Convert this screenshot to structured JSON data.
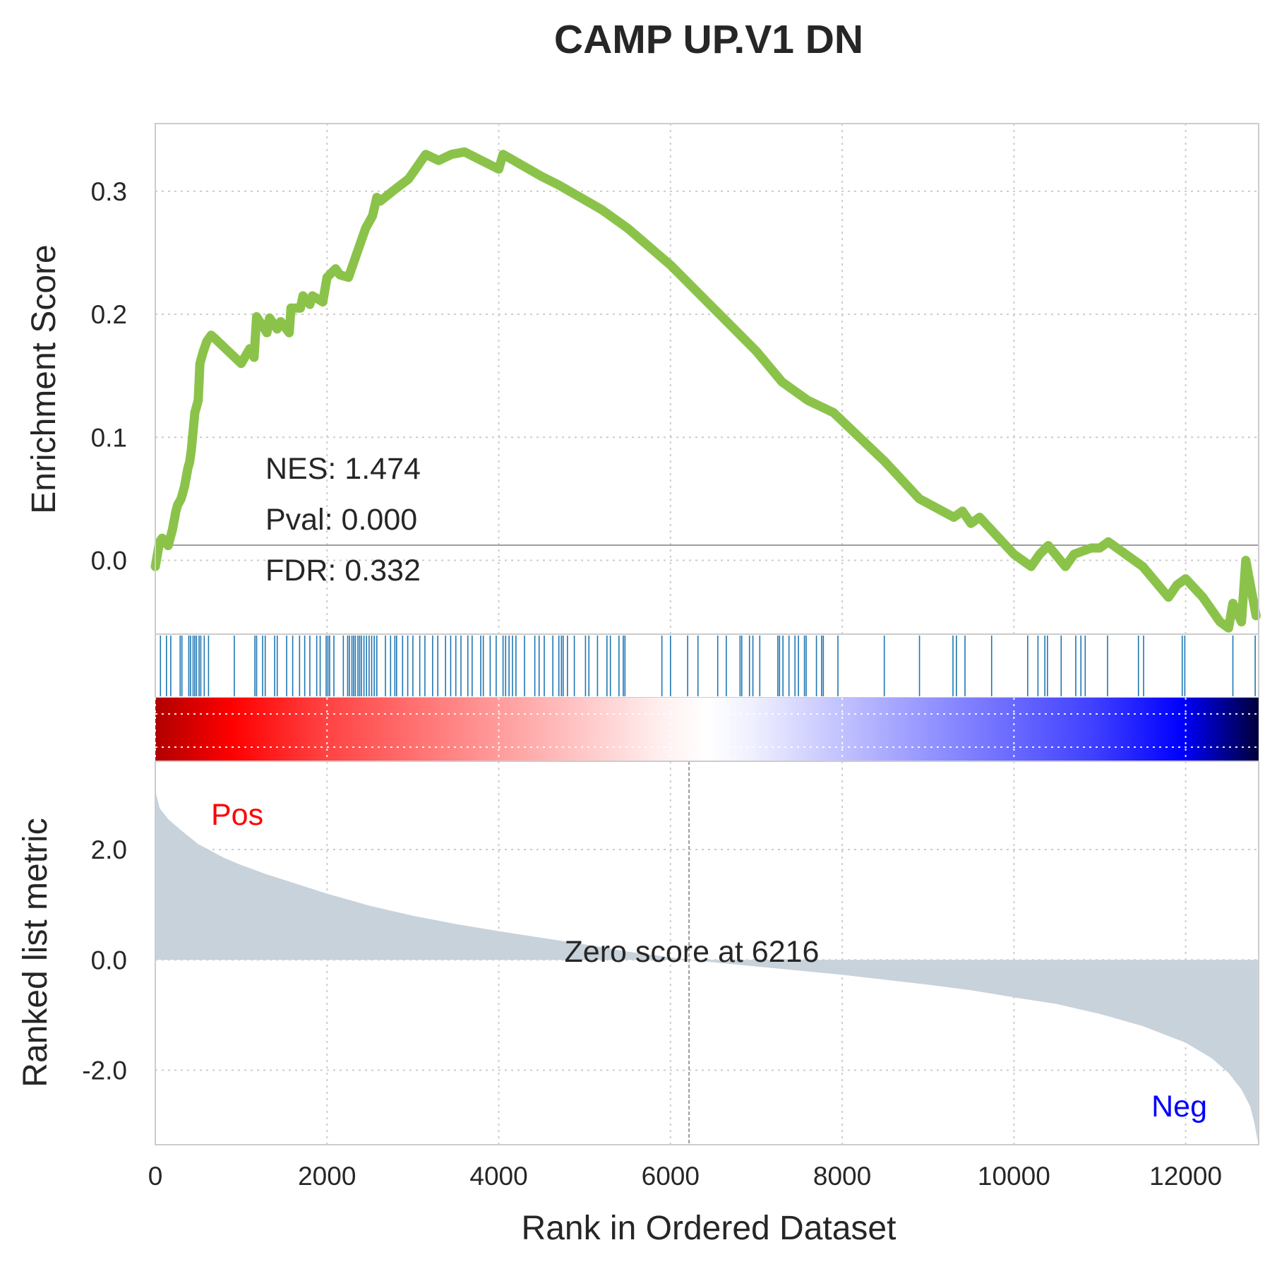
{
  "chart_data": {
    "type": "line",
    "title": "CAMP UP.V1 DN",
    "xlabel": "Rank in Ordered Dataset",
    "x_ticks": [
      "0",
      "2000",
      "4000",
      "6000",
      "8000",
      "10000",
      "12000"
    ],
    "xlim": [
      0,
      12850
    ],
    "panels": {
      "enrichment": {
        "ylabel": "Enrichment Score",
        "y_ticks": [
          "0.0",
          "0.1",
          "0.2",
          "0.3"
        ],
        "ylim": [
          -0.06,
          0.355
        ],
        "line_color": "#8bc34a",
        "stats": {
          "nes": "NES: 1.474",
          "pval": "Pval: 0.000",
          "fdr": "FDR: 0.332"
        },
        "series": {
          "name": "",
          "x": [
            0,
            50,
            80,
            150,
            200,
            240,
            260,
            300,
            340,
            380,
            400,
            420,
            460,
            500,
            520,
            560,
            600,
            650,
            700,
            1000,
            1100,
            1150,
            1180,
            1300,
            1330,
            1420,
            1460,
            1560,
            1580,
            1690,
            1720,
            1800,
            1830,
            1950,
            2000,
            2100,
            2150,
            2250,
            2350,
            2450,
            2530,
            2580,
            2620,
            2800,
            2950,
            3000,
            3050,
            3150,
            3300,
            3450,
            3600,
            3800,
            4000,
            4050,
            4150,
            4300,
            4500,
            4700,
            5000,
            5200,
            5500,
            6000,
            6500,
            7000,
            7300,
            7600,
            7900,
            8500,
            8900,
            9300,
            9400,
            9500,
            9600,
            10000,
            10200,
            10300,
            10400,
            10600,
            10700,
            10900,
            11000,
            11100,
            11200,
            11300,
            11500,
            11800,
            11900,
            12000,
            12200,
            12400,
            12500,
            12550,
            12650,
            12700,
            12820
          ],
          "values": [
            -0.005,
            0.015,
            0.018,
            0.012,
            0.025,
            0.04,
            0.045,
            0.05,
            0.06,
            0.075,
            0.08,
            0.09,
            0.12,
            0.13,
            0.16,
            0.17,
            0.178,
            0.183,
            0.18,
            0.16,
            0.172,
            0.165,
            0.198,
            0.185,
            0.197,
            0.188,
            0.194,
            0.185,
            0.205,
            0.205,
            0.215,
            0.208,
            0.215,
            0.21,
            0.23,
            0.237,
            0.232,
            0.23,
            0.25,
            0.27,
            0.28,
            0.295,
            0.292,
            0.302,
            0.31,
            0.315,
            0.32,
            0.33,
            0.325,
            0.33,
            0.332,
            0.325,
            0.318,
            0.33,
            0.326,
            0.32,
            0.312,
            0.305,
            0.293,
            0.285,
            0.27,
            0.24,
            0.205,
            0.17,
            0.145,
            0.13,
            0.12,
            0.08,
            0.05,
            0.035,
            0.04,
            0.03,
            0.035,
            0.005,
            -0.005,
            0.005,
            0.012,
            -0.005,
            0.005,
            0.01,
            0.01,
            0.015,
            0.01,
            0.005,
            -0.005,
            -0.03,
            -0.02,
            -0.015,
            -0.03,
            -0.05,
            -0.055,
            -0.035,
            -0.05,
            0.0,
            -0.045
          ]
        }
      },
      "hits": {
        "color": "#1f77b4",
        "positions": [
          60,
          130,
          180,
          290,
          310,
          390,
          410,
          440,
          460,
          480,
          510,
          530,
          570,
          620,
          920,
          1160,
          1180,
          1250,
          1280,
          1390,
          1420,
          1530,
          1600,
          1680,
          1740,
          1800,
          1880,
          1920,
          1990,
          2010,
          2030,
          2080,
          2190,
          2240,
          2260,
          2290,
          2310,
          2330,
          2360,
          2380,
          2400,
          2430,
          2460,
          2490,
          2520,
          2550,
          2580,
          2680,
          2740,
          2790,
          2810,
          2880,
          2940,
          3000,
          3080,
          3140,
          3230,
          3290,
          3380,
          3440,
          3500,
          3560,
          3640,
          3690,
          3790,
          3820,
          3900,
          3970,
          4050,
          4080,
          4120,
          4160,
          4200,
          4300,
          4420,
          4470,
          4530,
          4630,
          4700,
          4730,
          4750,
          4800,
          4880,
          5010,
          5050,
          5150,
          5260,
          5300,
          5400,
          5450,
          5470,
          5900,
          6000,
          6200,
          6320,
          6550,
          6650,
          6810,
          6830,
          6920,
          6960,
          7040,
          7250,
          7270,
          7310,
          7380,
          7450,
          7490,
          7560,
          7580,
          7700,
          7760,
          7780,
          7950,
          8490,
          8900,
          9290,
          9330,
          9430,
          9740,
          10160,
          10280,
          10360,
          10390,
          10550,
          10720,
          10780,
          10830,
          11090,
          11450,
          11510,
          11960,
          11990,
          12550,
          12810
        ]
      },
      "ranked": {
        "ylabel": "Ranked list metric",
        "y_ticks": [
          "-2.0",
          "0.0",
          "2.0"
        ],
        "ylim": [
          -3.35,
          3.6
        ],
        "fill_color": "#c8d2db",
        "zero_crossing": 6216,
        "zero_label": "Zero score at 6216",
        "pos_label": "Pos",
        "neg_label": "Neg",
        "pos_color": "#ff0000",
        "neg_color": "#0000ff",
        "curve": {
          "x": [
            0,
            10,
            50,
            150,
            300,
            500,
            800,
            1000,
            1300,
            1500,
            2000,
            2500,
            3000,
            3500,
            4000,
            4500,
            5000,
            5500,
            6216,
            7000,
            8000,
            9000,
            9500,
            10000,
            10500,
            11000,
            11500,
            12000,
            12300,
            12500,
            12650,
            12750,
            12800,
            12840
          ],
          "values": [
            3.3,
            3.0,
            2.75,
            2.55,
            2.35,
            2.1,
            1.85,
            1.72,
            1.55,
            1.45,
            1.2,
            0.98,
            0.8,
            0.65,
            0.52,
            0.4,
            0.28,
            0.15,
            0.0,
            -0.12,
            -0.27,
            -0.45,
            -0.55,
            -0.68,
            -0.8,
            -0.98,
            -1.2,
            -1.5,
            -1.78,
            -2.05,
            -2.35,
            -2.65,
            -2.95,
            -3.3
          ]
        }
      }
    }
  }
}
